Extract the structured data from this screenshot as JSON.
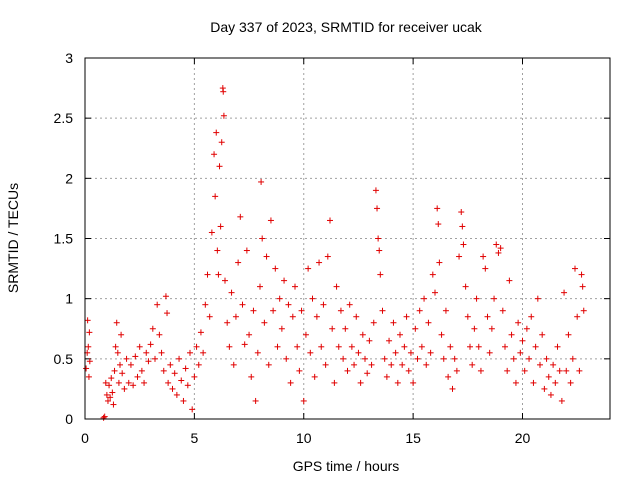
{
  "chart_data": {
    "type": "scatter",
    "title": "Day 337 of 2023, SRMTID for receiver ucak",
    "xlabel": "GPS time / hours",
    "ylabel": "SRMTID / TECUs",
    "xlim": [
      0,
      24
    ],
    "ylim": [
      0,
      3
    ],
    "xticks": [
      0,
      5,
      10,
      15,
      20
    ],
    "yticks": [
      0,
      0.5,
      1,
      1.5,
      2,
      2.5,
      3
    ],
    "xtick_labels": [
      "0",
      "5",
      "10",
      "15",
      "20"
    ],
    "ytick_labels": [
      "0",
      "0.5",
      "1",
      "1.5",
      "2",
      "2.5",
      "3"
    ],
    "grid": true,
    "marker": "+",
    "color": "#e00000",
    "series": [
      {
        "name": "SRMTID",
        "points": [
          [
            0.05,
            0.42
          ],
          [
            0.1,
            0.55
          ],
          [
            0.12,
            0.82
          ],
          [
            0.15,
            0.6
          ],
          [
            0.18,
            0.35
          ],
          [
            0.2,
            0.72
          ],
          [
            0.22,
            0.48
          ],
          [
            0.85,
            0.01
          ],
          [
            0.9,
            0.02
          ],
          [
            0.95,
            0.3
          ],
          [
            1.0,
            0.2
          ],
          [
            1.05,
            0.15
          ],
          [
            1.1,
            0.28
          ],
          [
            1.15,
            0.18
          ],
          [
            1.2,
            0.34
          ],
          [
            1.25,
            0.22
          ],
          [
            1.3,
            0.12
          ],
          [
            1.35,
            0.4
          ],
          [
            1.4,
            0.6
          ],
          [
            1.45,
            0.8
          ],
          [
            1.5,
            0.55
          ],
          [
            1.55,
            0.3
          ],
          [
            1.6,
            0.45
          ],
          [
            1.65,
            0.7
          ],
          [
            1.7,
            0.38
          ],
          [
            1.8,
            0.25
          ],
          [
            1.9,
            0.5
          ],
          [
            2.0,
            0.3
          ],
          [
            2.1,
            0.45
          ],
          [
            2.2,
            0.28
          ],
          [
            2.3,
            0.52
          ],
          [
            2.4,
            0.35
          ],
          [
            2.5,
            0.6
          ],
          [
            2.6,
            0.4
          ],
          [
            2.7,
            0.3
          ],
          [
            2.8,
            0.55
          ],
          [
            2.9,
            0.48
          ],
          [
            3.0,
            0.62
          ],
          [
            3.1,
            0.75
          ],
          [
            3.2,
            0.5
          ],
          [
            3.3,
            0.95
          ],
          [
            3.4,
            0.7
          ],
          [
            3.5,
            0.55
          ],
          [
            3.6,
            0.4
          ],
          [
            3.7,
            1.02
          ],
          [
            3.75,
            0.88
          ],
          [
            3.8,
            0.3
          ],
          [
            3.9,
            0.45
          ],
          [
            4.0,
            0.25
          ],
          [
            4.1,
            0.38
          ],
          [
            4.2,
            0.2
          ],
          [
            4.3,
            0.5
          ],
          [
            4.4,
            0.32
          ],
          [
            4.5,
            0.15
          ],
          [
            4.6,
            0.42
          ],
          [
            4.7,
            0.28
          ],
          [
            4.8,
            0.55
          ],
          [
            4.9,
            0.08
          ],
          [
            5.0,
            0.35
          ],
          [
            5.1,
            0.6
          ],
          [
            5.2,
            0.45
          ],
          [
            5.3,
            0.72
          ],
          [
            5.4,
            0.55
          ],
          [
            5.5,
            0.95
          ],
          [
            5.6,
            1.2
          ],
          [
            5.7,
            0.85
          ],
          [
            5.8,
            1.55
          ],
          [
            5.9,
            2.2
          ],
          [
            5.95,
            1.85
          ],
          [
            6.0,
            2.38
          ],
          [
            6.05,
            1.4
          ],
          [
            6.1,
            1.2
          ],
          [
            6.15,
            2.1
          ],
          [
            6.2,
            1.6
          ],
          [
            6.25,
            2.3
          ],
          [
            6.3,
            2.75
          ],
          [
            6.32,
            2.72
          ],
          [
            6.35,
            2.52
          ],
          [
            6.4,
            1.15
          ],
          [
            6.5,
            0.8
          ],
          [
            6.6,
            0.6
          ],
          [
            6.7,
            1.05
          ],
          [
            6.8,
            0.45
          ],
          [
            6.9,
            0.85
          ],
          [
            7.0,
            1.3
          ],
          [
            7.1,
            1.68
          ],
          [
            7.2,
            0.95
          ],
          [
            7.3,
            0.62
          ],
          [
            7.4,
            1.4
          ],
          [
            7.5,
            0.7
          ],
          [
            7.6,
            0.35
          ],
          [
            7.7,
            0.9
          ],
          [
            7.8,
            0.15
          ],
          [
            7.9,
            0.55
          ],
          [
            8.0,
            1.1
          ],
          [
            8.05,
            1.97
          ],
          [
            8.1,
            1.5
          ],
          [
            8.2,
            0.8
          ],
          [
            8.3,
            1.35
          ],
          [
            8.4,
            0.45
          ],
          [
            8.5,
            1.65
          ],
          [
            8.6,
            0.9
          ],
          [
            8.7,
            1.25
          ],
          [
            8.8,
            0.6
          ],
          [
            8.9,
            1.0
          ],
          [
            9.0,
            0.75
          ],
          [
            9.1,
            1.15
          ],
          [
            9.2,
            0.5
          ],
          [
            9.3,
            0.95
          ],
          [
            9.4,
            0.3
          ],
          [
            9.5,
            0.85
          ],
          [
            9.6,
            1.1
          ],
          [
            9.7,
            0.6
          ],
          [
            9.8,
            0.4
          ],
          [
            9.9,
            0.9
          ],
          [
            10.0,
            0.15
          ],
          [
            10.1,
            0.7
          ],
          [
            10.2,
            1.25
          ],
          [
            10.3,
            0.55
          ],
          [
            10.4,
            1.0
          ],
          [
            10.5,
            0.35
          ],
          [
            10.6,
            0.85
          ],
          [
            10.7,
            1.3
          ],
          [
            10.8,
            0.6
          ],
          [
            10.9,
            0.95
          ],
          [
            11.0,
            0.45
          ],
          [
            11.1,
            1.35
          ],
          [
            11.2,
            1.65
          ],
          [
            11.3,
            0.75
          ],
          [
            11.4,
            0.3
          ],
          [
            11.5,
            1.1
          ],
          [
            11.6,
            0.6
          ],
          [
            11.7,
            0.9
          ],
          [
            11.8,
            0.5
          ],
          [
            11.9,
            0.75
          ],
          [
            12.0,
            0.4
          ],
          [
            12.1,
            0.95
          ],
          [
            12.2,
            0.6
          ],
          [
            12.3,
            0.45
          ],
          [
            12.4,
            0.85
          ],
          [
            12.5,
            0.55
          ],
          [
            12.6,
            0.3
          ],
          [
            12.7,
            0.7
          ],
          [
            12.8,
            0.5
          ],
          [
            12.9,
            0.38
          ],
          [
            13.0,
            0.65
          ],
          [
            13.1,
            0.45
          ],
          [
            13.2,
            0.8
          ],
          [
            13.3,
            1.9
          ],
          [
            13.35,
            1.75
          ],
          [
            13.4,
            1.5
          ],
          [
            13.45,
            1.4
          ],
          [
            13.5,
            1.2
          ],
          [
            13.6,
            0.9
          ],
          [
            13.7,
            0.5
          ],
          [
            13.8,
            0.35
          ],
          [
            13.9,
            0.65
          ],
          [
            14.0,
            0.45
          ],
          [
            14.1,
            0.8
          ],
          [
            14.2,
            0.55
          ],
          [
            14.3,
            0.3
          ],
          [
            14.4,
            0.7
          ],
          [
            14.5,
            0.45
          ],
          [
            14.6,
            0.6
          ],
          [
            14.7,
            0.85
          ],
          [
            14.8,
            0.4
          ],
          [
            14.9,
            0.55
          ],
          [
            15.0,
            0.3
          ],
          [
            15.1,
            0.75
          ],
          [
            15.2,
            0.5
          ],
          [
            15.3,
            0.9
          ],
          [
            15.4,
            0.6
          ],
          [
            15.5,
            1.0
          ],
          [
            15.6,
            0.45
          ],
          [
            15.7,
            0.8
          ],
          [
            15.8,
            0.55
          ],
          [
            15.9,
            1.2
          ],
          [
            16.0,
            1.05
          ],
          [
            16.1,
            1.75
          ],
          [
            16.15,
            1.62
          ],
          [
            16.2,
            1.3
          ],
          [
            16.3,
            0.7
          ],
          [
            16.4,
            0.5
          ],
          [
            16.5,
            0.9
          ],
          [
            16.6,
            0.35
          ],
          [
            16.7,
            0.6
          ],
          [
            16.8,
            0.25
          ],
          [
            16.9,
            0.5
          ],
          [
            17.0,
            0.4
          ],
          [
            17.1,
            1.35
          ],
          [
            17.2,
            1.72
          ],
          [
            17.25,
            1.6
          ],
          [
            17.3,
            1.45
          ],
          [
            17.4,
            1.1
          ],
          [
            17.5,
            0.85
          ],
          [
            17.6,
            0.6
          ],
          [
            17.7,
            0.45
          ],
          [
            17.8,
            0.75
          ],
          [
            17.9,
            1.0
          ],
          [
            18.0,
            0.6
          ],
          [
            18.1,
            0.4
          ],
          [
            18.2,
            1.35
          ],
          [
            18.3,
            1.25
          ],
          [
            18.4,
            0.85
          ],
          [
            18.5,
            0.55
          ],
          [
            18.6,
            0.75
          ],
          [
            18.7,
            1.0
          ],
          [
            18.8,
            1.45
          ],
          [
            18.9,
            1.38
          ],
          [
            19.0,
            1.42
          ],
          [
            19.1,
            0.9
          ],
          [
            19.2,
            0.6
          ],
          [
            19.3,
            0.4
          ],
          [
            19.4,
            1.15
          ],
          [
            19.5,
            0.7
          ],
          [
            19.6,
            0.5
          ],
          [
            19.7,
            0.3
          ],
          [
            19.8,
            0.8
          ],
          [
            19.9,
            0.55
          ],
          [
            20.0,
            0.65
          ],
          [
            20.1,
            0.4
          ],
          [
            20.2,
            0.75
          ],
          [
            20.3,
            0.5
          ],
          [
            20.4,
            0.85
          ],
          [
            20.5,
            0.3
          ],
          [
            20.6,
            0.6
          ],
          [
            20.7,
            1.0
          ],
          [
            20.8,
            0.45
          ],
          [
            20.9,
            0.7
          ],
          [
            21.0,
            0.25
          ],
          [
            21.1,
            0.5
          ],
          [
            21.2,
            0.35
          ],
          [
            21.3,
            0.2
          ],
          [
            21.4,
            0.45
          ],
          [
            21.5,
            0.3
          ],
          [
            21.6,
            0.6
          ],
          [
            21.7,
            0.4
          ],
          [
            21.8,
            0.15
          ],
          [
            21.9,
            1.05
          ],
          [
            22.0,
            0.4
          ],
          [
            22.1,
            0.7
          ],
          [
            22.2,
            0.3
          ],
          [
            22.3,
            0.5
          ],
          [
            22.4,
            1.25
          ],
          [
            22.5,
            0.85
          ],
          [
            22.6,
            0.4
          ],
          [
            22.7,
            1.2
          ],
          [
            22.75,
            1.1
          ],
          [
            22.8,
            0.9
          ]
        ]
      }
    ]
  }
}
